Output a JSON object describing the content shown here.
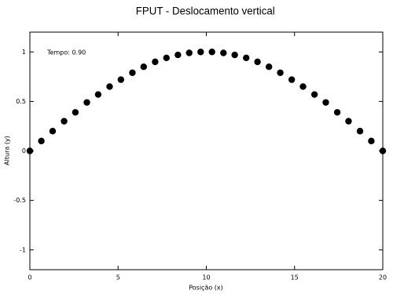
{
  "chart_data": {
    "type": "scatter",
    "title": "FPUT - Deslocamento vertical",
    "xlabel": "Posição (x)",
    "ylabel": "Altura (y)",
    "annotation": "Tempo: 0.90",
    "color": "#000000",
    "x": [
      0,
      0.65,
      1.29,
      1.94,
      2.58,
      3.23,
      3.87,
      4.52,
      5.16,
      5.81,
      6.45,
      7.1,
      7.74,
      8.39,
      9.03,
      9.68,
      10.32,
      10.97,
      11.61,
      12.26,
      12.9,
      13.55,
      14.19,
      14.84,
      15.48,
      16.13,
      16.77,
      17.42,
      18.06,
      18.71,
      19.35,
      20
    ],
    "values": [
      0,
      0.1,
      0.2,
      0.3,
      0.39,
      0.49,
      0.57,
      0.65,
      0.72,
      0.79,
      0.85,
      0.9,
      0.94,
      0.97,
      0.99,
      1.0,
      1.0,
      0.99,
      0.97,
      0.94,
      0.9,
      0.85,
      0.79,
      0.72,
      0.65,
      0.57,
      0.49,
      0.39,
      0.3,
      0.2,
      0.1,
      0
    ],
    "xlim": [
      0,
      20
    ],
    "ylim": [
      -1.2,
      1.2
    ],
    "xticks": [
      0,
      5,
      10,
      15,
      20
    ],
    "yticks": [
      -1,
      -0.5,
      0,
      0.5,
      1
    ]
  }
}
